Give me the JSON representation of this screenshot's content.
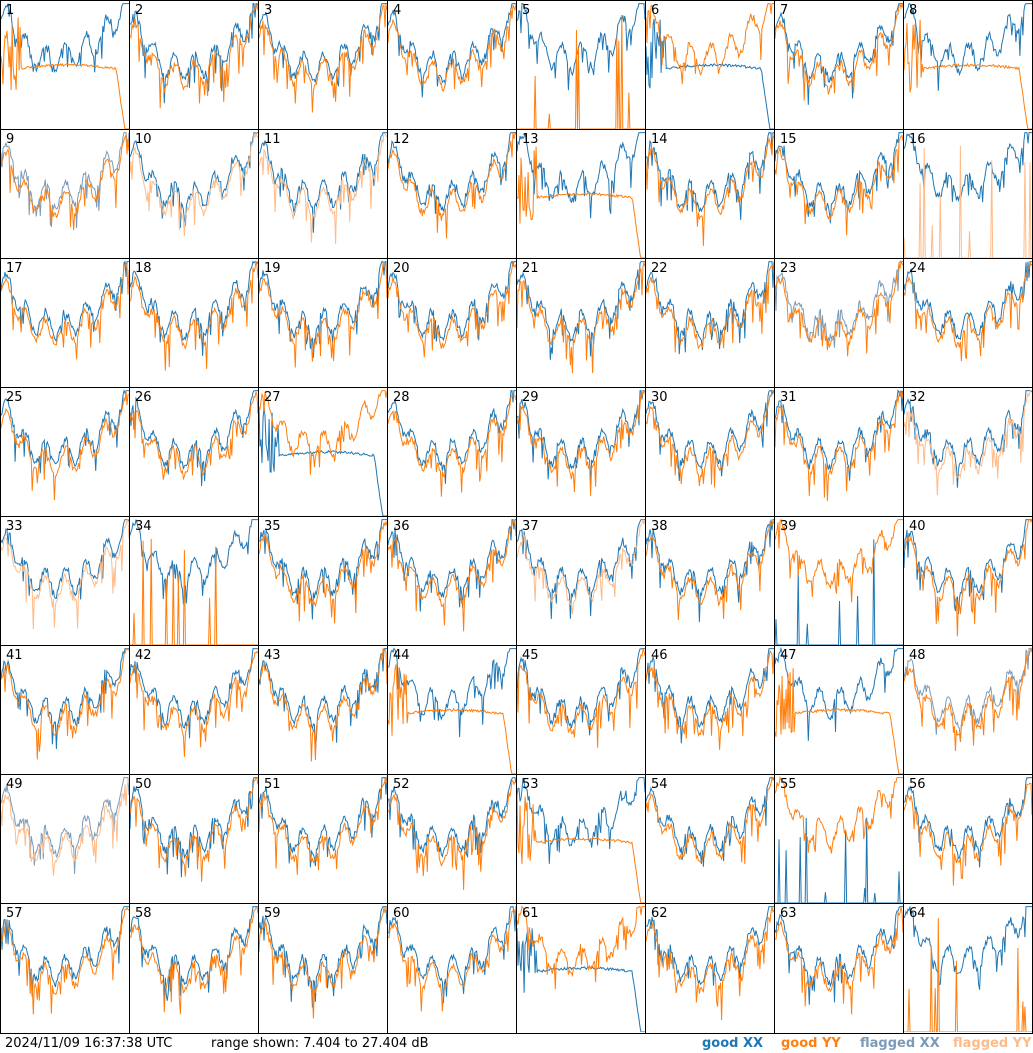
{
  "chart_data": {
    "type": "line",
    "panel_count": 64,
    "columns": 8,
    "rows": 8,
    "x_axis_shown": false,
    "y_axis_shown": false,
    "grid": false,
    "range_db": [
      7.404,
      27.404
    ],
    "colors": {
      "good_xx": "#1f77b4",
      "good_yy": "#ff7f0e",
      "flagged_xx": "#7b9bb8",
      "flagged_yy": "#ffbb88"
    },
    "panel_labels": [
      "1",
      "2",
      "3",
      "4",
      "5",
      "6",
      "7",
      "8",
      "9",
      "10",
      "11",
      "12",
      "13",
      "14",
      "15",
      "16",
      "17",
      "18",
      "19",
      "20",
      "21",
      "22",
      "23",
      "24",
      "25",
      "26",
      "27",
      "28",
      "29",
      "30",
      "31",
      "32",
      "33",
      "34",
      "35",
      "36",
      "37",
      "38",
      "39",
      "40",
      "41",
      "42",
      "43",
      "44",
      "45",
      "46",
      "47",
      "48",
      "49",
      "50",
      "51",
      "52",
      "53",
      "54",
      "55",
      "56",
      "57",
      "58",
      "59",
      "60",
      "61",
      "62",
      "63",
      "64"
    ],
    "panel_status": {
      "flagged_xx": [
        "9",
        "23",
        "48",
        "49"
      ],
      "flagged_yy": [
        "10",
        "11",
        "16",
        "32",
        "33",
        "37",
        "49"
      ],
      "notes": "Panels 5,16,34,39,55,64 show a mostly-dead (near-floor) trace with sparse spikes; panels 1,6,8,13,27,44,47,53,61 show a low smooth arch in one polarisation."
    }
  },
  "footer": {
    "timestamp": "2024/11/09 16:37:38 UTC",
    "range_text": "range shown: 7.404 to 27.404 dB"
  },
  "legend": [
    {
      "label": "good XX",
      "color": "#1f77b4"
    },
    {
      "label": "good YY",
      "color": "#ff7f0e"
    },
    {
      "label": "flagged XX",
      "color": "#7b9bb8"
    },
    {
      "label": "flagged YY",
      "color": "#ffbb88"
    }
  ]
}
